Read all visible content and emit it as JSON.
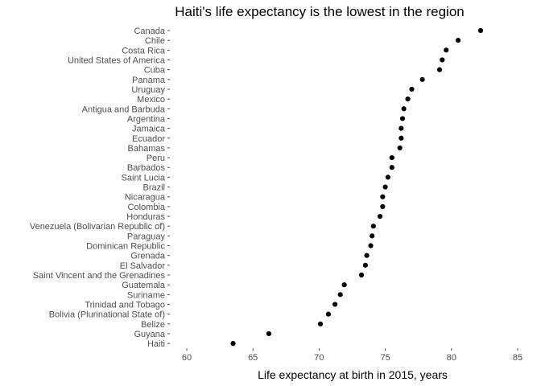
{
  "chart_data": {
    "type": "scatter",
    "title": "Haiti's life expectancy is the lowest in the region",
    "xlabel": "Life expectancy at birth in 2015, years",
    "ylabel": "",
    "xlim": [
      60,
      85
    ],
    "xticks": [
      60,
      65,
      70,
      75,
      80,
      85
    ],
    "grid": false,
    "point_color": "#000000",
    "points": [
      {
        "country": "Canada",
        "value": 82.2
      },
      {
        "country": "Chile",
        "value": 80.5
      },
      {
        "country": "Costa Rica",
        "value": 79.6
      },
      {
        "country": "United States of America",
        "value": 79.3
      },
      {
        "country": "Cuba",
        "value": 79.1
      },
      {
        "country": "Panama",
        "value": 77.8
      },
      {
        "country": "Uruguay",
        "value": 77.0
      },
      {
        "country": "Mexico",
        "value": 76.7
      },
      {
        "country": "Antigua and Barbuda",
        "value": 76.4
      },
      {
        "country": "Argentina",
        "value": 76.3
      },
      {
        "country": "Jamaica",
        "value": 76.2
      },
      {
        "country": "Ecuador",
        "value": 76.2
      },
      {
        "country": "Bahamas",
        "value": 76.1
      },
      {
        "country": "Peru",
        "value": 75.5
      },
      {
        "country": "Barbados",
        "value": 75.5
      },
      {
        "country": "Saint Lucia",
        "value": 75.2
      },
      {
        "country": "Brazil",
        "value": 75.0
      },
      {
        "country": "Nicaragua",
        "value": 74.8
      },
      {
        "country": "Colombia",
        "value": 74.8
      },
      {
        "country": "Honduras",
        "value": 74.6
      },
      {
        "country": "Venezuela (Bolivarian Republic of)",
        "value": 74.1
      },
      {
        "country": "Paraguay",
        "value": 74.0
      },
      {
        "country": "Dominican Republic",
        "value": 73.9
      },
      {
        "country": "Grenada",
        "value": 73.6
      },
      {
        "country": "El Salvador",
        "value": 73.5
      },
      {
        "country": "Saint Vincent and the Grenadines",
        "value": 73.2
      },
      {
        "country": "Guatemala",
        "value": 71.9
      },
      {
        "country": "Suriname",
        "value": 71.6
      },
      {
        "country": "Trinidad and Tobago",
        "value": 71.2
      },
      {
        "country": "Bolivia (Plurinational State of)",
        "value": 70.7
      },
      {
        "country": "Belize",
        "value": 70.1
      },
      {
        "country": "Guyana",
        "value": 66.2
      },
      {
        "country": "Haiti",
        "value": 63.5
      }
    ]
  }
}
